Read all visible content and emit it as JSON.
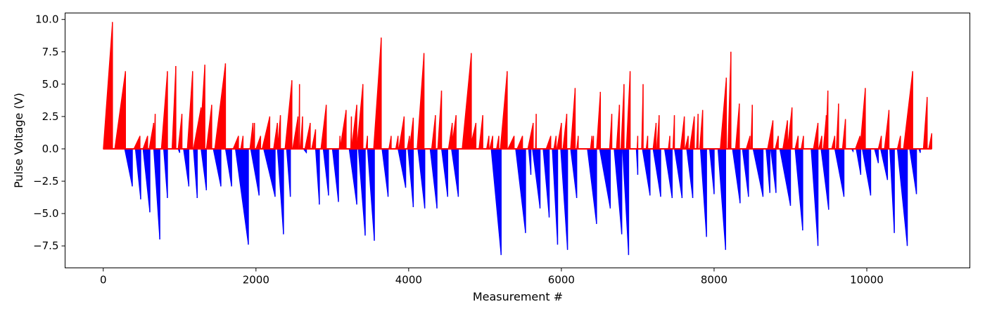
{
  "chart_data": {
    "type": "bar",
    "title": "",
    "xlabel": "Measurement #",
    "ylabel": "Pulse Voltage (V)",
    "xlim": [
      -500,
      11350
    ],
    "ylim": [
      -9.2,
      10.5
    ],
    "x_ticks": [
      0,
      2000,
      4000,
      6000,
      8000,
      10000
    ],
    "x_tick_labels": [
      "0",
      "2000",
      "4000",
      "6000",
      "8000",
      "10000"
    ],
    "y_ticks": [
      -7.5,
      -5.0,
      -2.5,
      0.0,
      2.5,
      5.0,
      7.5,
      10.0
    ],
    "y_tick_labels": [
      "−7.5",
      "−5.0",
      "−2.5",
      "0.0",
      "2.5",
      "5.0",
      "7.5",
      "10.0"
    ],
    "grid": false,
    "series": [
      {
        "color": "#ff0000",
        "ramps": [
          [
            0,
            120,
            9.8
          ],
          [
            150,
            290,
            6.0
          ],
          [
            400,
            480,
            1.0
          ],
          [
            520,
            580,
            1.0
          ],
          [
            600,
            660,
            2.0
          ],
          [
            660,
            680,
            2.7
          ],
          [
            760,
            840,
            6.0
          ],
          [
            900,
            950,
            6.4
          ],
          [
            980,
            1030,
            2.7
          ],
          [
            1100,
            1170,
            6.0
          ],
          [
            1180,
            1280,
            3.2
          ],
          [
            1260,
            1330,
            6.5
          ],
          [
            1350,
            1420,
            3.4
          ],
          [
            1460,
            1600,
            6.6
          ],
          [
            1700,
            1770,
            1.0
          ],
          [
            1800,
            1830,
            1.0
          ],
          [
            1920,
            1960,
            2.0
          ],
          [
            1960,
            1980,
            2.0
          ],
          [
            2000,
            2060,
            1.0
          ],
          [
            2080,
            2180,
            2.5
          ],
          [
            2230,
            2280,
            2.0
          ],
          [
            2280,
            2320,
            2.6
          ],
          [
            2380,
            2470,
            5.3
          ],
          [
            2480,
            2550,
            2.5
          ],
          [
            2560,
            2570,
            5.0
          ],
          [
            2580,
            2610,
            2.5
          ],
          [
            2640,
            2710,
            2.0
          ],
          [
            2730,
            2780,
            1.5
          ],
          [
            2850,
            2920,
            3.4
          ],
          [
            3090,
            3100,
            1.0
          ],
          [
            3100,
            3180,
            3.0
          ],
          [
            3240,
            3250,
            2.5
          ],
          [
            3250,
            3320,
            3.4
          ],
          [
            3320,
            3400,
            5.0
          ],
          [
            3440,
            3460,
            1.0
          ],
          [
            3540,
            3640,
            8.6
          ],
          [
            3740,
            3770,
            1.0
          ],
          [
            3830,
            3860,
            1.0
          ],
          [
            3870,
            3940,
            2.5
          ],
          [
            3980,
            4010,
            1.0
          ],
          [
            4010,
            4060,
            2.4
          ],
          [
            4110,
            4200,
            7.4
          ],
          [
            4300,
            4350,
            2.6
          ],
          [
            4380,
            4430,
            4.5
          ],
          [
            4520,
            4570,
            2.0
          ],
          [
            4560,
            4620,
            2.6
          ],
          [
            4700,
            4820,
            7.4
          ],
          [
            4800,
            4880,
            2.0
          ],
          [
            4920,
            4970,
            2.6
          ],
          [
            5020,
            5050,
            1.0
          ],
          [
            5060,
            5100,
            1.0
          ],
          [
            5150,
            5180,
            1.0
          ],
          [
            5200,
            5290,
            6.0
          ],
          [
            5300,
            5380,
            1.0
          ],
          [
            5420,
            5490,
            1.0
          ],
          [
            5560,
            5630,
            2.0
          ],
          [
            5660,
            5670,
            2.7
          ],
          [
            5800,
            5860,
            1.0
          ],
          [
            5900,
            5930,
            1.0
          ],
          [
            5940,
            6000,
            2.0
          ],
          [
            6020,
            6070,
            2.7
          ],
          [
            6120,
            6180,
            4.7
          ],
          [
            6200,
            6220,
            1.0
          ],
          [
            6380,
            6400,
            1.0
          ],
          [
            6400,
            6420,
            1.0
          ],
          [
            6460,
            6510,
            4.4
          ],
          [
            6630,
            6660,
            2.7
          ],
          [
            6720,
            6760,
            3.4
          ],
          [
            6780,
            6820,
            5.0
          ],
          [
            6850,
            6900,
            6.0
          ],
          [
            6990,
            7000,
            1.0
          ],
          [
            7050,
            7070,
            5.0
          ],
          [
            7110,
            7130,
            1.0
          ],
          [
            7200,
            7240,
            2.0
          ],
          [
            7250,
            7280,
            2.6
          ],
          [
            7400,
            7420,
            1.0
          ],
          [
            7460,
            7480,
            2.6
          ],
          [
            7560,
            7610,
            2.5
          ],
          [
            7620,
            7660,
            1.0
          ],
          [
            7680,
            7740,
            2.5
          ],
          [
            7770,
            7790,
            2.7
          ],
          [
            7810,
            7850,
            3.0
          ],
          [
            8080,
            8160,
            5.5
          ],
          [
            8180,
            8220,
            7.5
          ],
          [
            8280,
            8330,
            3.5
          ],
          [
            8420,
            8470,
            1.0
          ],
          [
            8480,
            8500,
            3.4
          ],
          [
            8700,
            8770,
            2.2
          ],
          [
            8800,
            8840,
            1.0
          ],
          [
            8900,
            8960,
            2.2
          ],
          [
            8960,
            9020,
            3.2
          ],
          [
            9060,
            9100,
            1.0
          ],
          [
            9140,
            9170,
            1.0
          ],
          [
            9300,
            9360,
            2.0
          ],
          [
            9370,
            9410,
            1.0
          ],
          [
            9430,
            9470,
            2.6
          ],
          [
            9460,
            9490,
            4.5
          ],
          [
            9540,
            9580,
            1.0
          ],
          [
            9600,
            9630,
            3.5
          ],
          [
            9680,
            9720,
            2.3
          ],
          [
            9850,
            9910,
            1.0
          ],
          [
            9910,
            9980,
            4.7
          ],
          [
            10150,
            10190,
            1.0
          ],
          [
            10230,
            10290,
            3.0
          ],
          [
            10400,
            10440,
            1.0
          ],
          [
            10480,
            10600,
            6.0
          ],
          [
            10740,
            10790,
            4.0
          ],
          [
            10810,
            10850,
            1.2
          ]
        ]
      },
      {
        "color": "#0000ff",
        "ramps": [
          [
            280,
            380,
            -2.9
          ],
          [
            420,
            490,
            -3.9
          ],
          [
            520,
            610,
            -4.9
          ],
          [
            660,
            740,
            -7.0
          ],
          [
            790,
            840,
            -3.8
          ],
          [
            980,
            1000,
            -0.3
          ],
          [
            1050,
            1120,
            -2.9
          ],
          [
            1180,
            1230,
            -3.8
          ],
          [
            1280,
            1350,
            -3.2
          ],
          [
            1440,
            1540,
            -2.9
          ],
          [
            1600,
            1680,
            -2.9
          ],
          [
            1730,
            1900,
            -7.4
          ],
          [
            1930,
            2040,
            -3.6
          ],
          [
            2100,
            2250,
            -3.7
          ],
          [
            2280,
            2360,
            -6.6
          ],
          [
            2400,
            2450,
            -3.7
          ],
          [
            2620,
            2660,
            -0.3
          ],
          [
            2780,
            2830,
            -4.3
          ],
          [
            2880,
            2950,
            -3.6
          ],
          [
            3000,
            3080,
            -4.1
          ],
          [
            3220,
            3320,
            -4.3
          ],
          [
            3340,
            3430,
            -6.7
          ],
          [
            3460,
            3550,
            -7.1
          ],
          [
            3650,
            3730,
            -3.7
          ],
          [
            3860,
            3960,
            -3.0
          ],
          [
            3990,
            4060,
            -4.5
          ],
          [
            4120,
            4210,
            -4.6
          ],
          [
            4280,
            4370,
            -4.6
          ],
          [
            4430,
            4510,
            -3.7
          ],
          [
            4560,
            4650,
            -3.7
          ],
          [
            5080,
            5210,
            -8.2
          ],
          [
            5400,
            5530,
            -6.5
          ],
          [
            5570,
            5600,
            -2.0
          ],
          [
            5620,
            5720,
            -4.6
          ],
          [
            5760,
            5840,
            -5.3
          ],
          [
            5880,
            5950,
            -7.4
          ],
          [
            5990,
            6080,
            -7.8
          ],
          [
            6120,
            6200,
            -3.8
          ],
          [
            6340,
            6460,
            -5.8
          ],
          [
            6500,
            6640,
            -4.6
          ],
          [
            6690,
            6790,
            -6.6
          ],
          [
            6800,
            6880,
            -8.2
          ],
          [
            6980,
            7000,
            -2.0
          ],
          [
            7060,
            7160,
            -3.6
          ],
          [
            7200,
            7300,
            -3.7
          ],
          [
            7350,
            7450,
            -3.8
          ],
          [
            7480,
            7580,
            -3.8
          ],
          [
            7640,
            7720,
            -3.8
          ],
          [
            7820,
            7900,
            -6.8
          ],
          [
            7940,
            8000,
            -3.5
          ],
          [
            8050,
            8150,
            -7.8
          ],
          [
            8240,
            8340,
            -4.2
          ],
          [
            8370,
            8450,
            -3.7
          ],
          [
            8510,
            8640,
            -3.7
          ],
          [
            8680,
            8730,
            -3.4
          ],
          [
            8740,
            8810,
            -3.4
          ],
          [
            8860,
            9000,
            -4.4
          ],
          [
            9060,
            9160,
            -6.3
          ],
          [
            9270,
            9360,
            -7.5
          ],
          [
            9400,
            9500,
            -4.7
          ],
          [
            9580,
            9700,
            -3.7
          ],
          [
            9800,
            9820,
            -0.2
          ],
          [
            9860,
            9920,
            -2.0
          ],
          [
            9940,
            10050,
            -3.6
          ],
          [
            10100,
            10150,
            -1.1
          ],
          [
            10180,
            10270,
            -2.4
          ],
          [
            10300,
            10360,
            -6.5
          ],
          [
            10400,
            10530,
            -7.5
          ],
          [
            10560,
            10650,
            -3.5
          ],
          [
            10680,
            10700,
            -0.3
          ]
        ]
      }
    ]
  }
}
